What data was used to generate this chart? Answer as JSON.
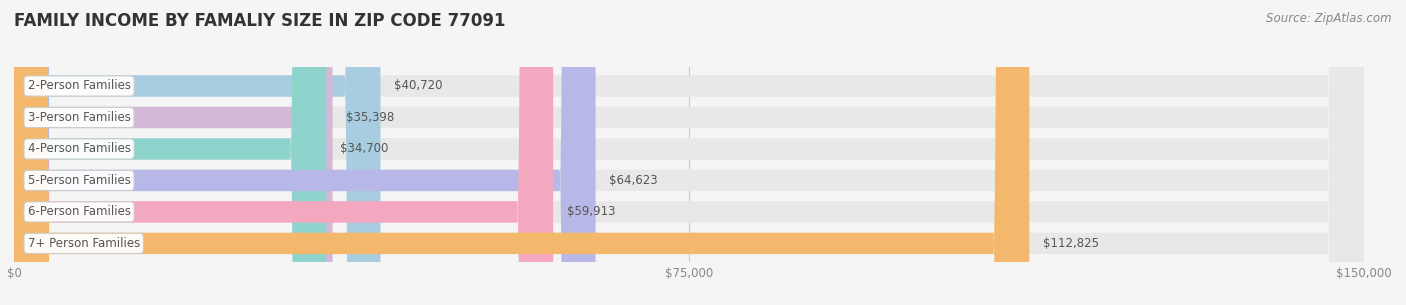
{
  "title": "FAMILY INCOME BY FAMALIY SIZE IN ZIP CODE 77091",
  "source": "Source: ZipAtlas.com",
  "categories": [
    "2-Person Families",
    "3-Person Families",
    "4-Person Families",
    "5-Person Families",
    "6-Person Families",
    "7+ Person Families"
  ],
  "values": [
    40720,
    35398,
    34700,
    64623,
    59913,
    112825
  ],
  "bar_colors": [
    "#a8cce0",
    "#d4b8d8",
    "#8ed4cc",
    "#b8b8e8",
    "#f4a8c0",
    "#f4b86c"
  ],
  "value_labels": [
    "$40,720",
    "$35,398",
    "$34,700",
    "$64,623",
    "$59,913",
    "$112,825"
  ],
  "xlim": [
    0,
    150000
  ],
  "xticks": [
    0,
    75000,
    150000
  ],
  "xtick_labels": [
    "$0",
    "$75,000",
    "$150,000"
  ],
  "background_color": "#f5f5f5",
  "bar_bg_color": "#e8e8e8",
  "bar_height": 0.68,
  "title_fontsize": 12,
  "label_fontsize": 8.5,
  "value_fontsize": 8.5,
  "source_fontsize": 8.5
}
